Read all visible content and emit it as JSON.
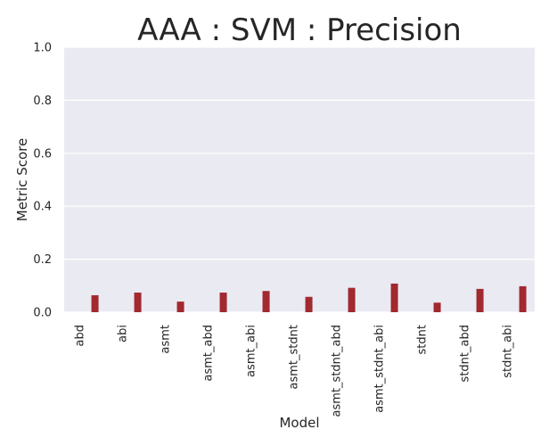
{
  "chart_data": {
    "type": "bar",
    "title": "AAA : SVM : Precision",
    "xlabel": "Model",
    "ylabel": "Metric Score",
    "ylim": [
      0.0,
      1.0
    ],
    "yticks": [
      "0.0",
      "0.2",
      "0.4",
      "0.6",
      "0.8",
      "1.0"
    ],
    "grid": true,
    "legend": "none",
    "categories": [
      "abd",
      "abi",
      "asmt",
      "asmt_abd",
      "asmt_abi",
      "asmt_stdnt",
      "asmt_stdnt_abd",
      "asmt_stdnt_abi",
      "stdnt",
      "stdnt_abd",
      "stdnt_abi"
    ],
    "values": [
      0.064,
      0.074,
      0.04,
      0.074,
      0.08,
      0.058,
      0.092,
      0.108,
      0.036,
      0.088,
      0.098
    ],
    "colors": {
      "bar": "#a1292f",
      "plot_background": "#eaeaf2",
      "grid": "#ffffff",
      "text": "#262626"
    }
  }
}
